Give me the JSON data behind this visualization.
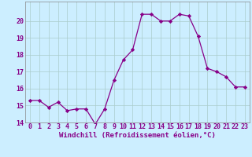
{
  "x": [
    0,
    1,
    2,
    3,
    4,
    5,
    6,
    7,
    8,
    9,
    10,
    11,
    12,
    13,
    14,
    15,
    16,
    17,
    18,
    19,
    20,
    21,
    22,
    23
  ],
  "y": [
    15.3,
    15.3,
    14.9,
    15.2,
    14.7,
    14.8,
    14.8,
    13.9,
    14.8,
    16.5,
    17.7,
    18.3,
    20.4,
    20.4,
    20.0,
    20.0,
    20.4,
    20.3,
    19.1,
    17.2,
    17.0,
    16.7,
    16.1,
    16.1
  ],
  "line_color": "#880088",
  "marker": "D",
  "marker_size": 2.2,
  "bg_color": "#cceeff",
  "grid_color": "#aacccc",
  "xlabel": "Windchill (Refroidissement éolien,°C)",
  "ylim": [
    14,
    21
  ],
  "xlim": [
    -0.5,
    23.5
  ],
  "yticks": [
    14,
    15,
    16,
    17,
    18,
    19,
    20
  ],
  "xticks": [
    0,
    1,
    2,
    3,
    4,
    5,
    6,
    7,
    8,
    9,
    10,
    11,
    12,
    13,
    14,
    15,
    16,
    17,
    18,
    19,
    20,
    21,
    22,
    23
  ],
  "tick_label_color": "#880088",
  "xlabel_color": "#880088",
  "xlabel_fontsize": 6.5,
  "tick_fontsize": 6,
  "linewidth": 0.9
}
